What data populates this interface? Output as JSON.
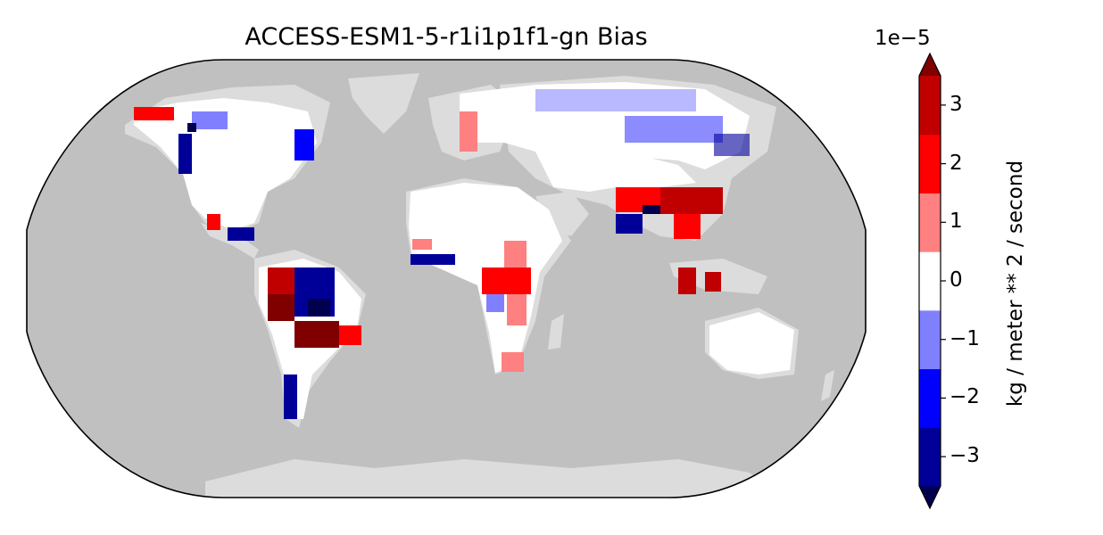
{
  "title": "ACCESS-ESM1-5-r1i1p1f1-gn Bias",
  "colorbar": {
    "exponent_label": "1e−5",
    "label": "kg / meter ** 2 / second",
    "ticks": [
      "−3",
      "−2",
      "−1",
      "0",
      "1",
      "2",
      "3"
    ],
    "levels": [
      -3.5,
      -3,
      -2.5,
      -2,
      -1.5,
      -1,
      -0.5,
      0.5,
      1,
      1.5,
      2,
      2.5,
      3,
      3.5
    ],
    "colors": [
      "#00004c",
      "#000099",
      "#0000ff",
      "#8080ff",
      "#ffffff",
      "#ff8080",
      "#ff0000",
      "#c00000",
      "#800000"
    ],
    "extend": "both"
  },
  "map": {
    "projection": "Robinson",
    "ocean_color": "#c0c0c0",
    "land_nodata_color": "#dcdcdc"
  }
}
